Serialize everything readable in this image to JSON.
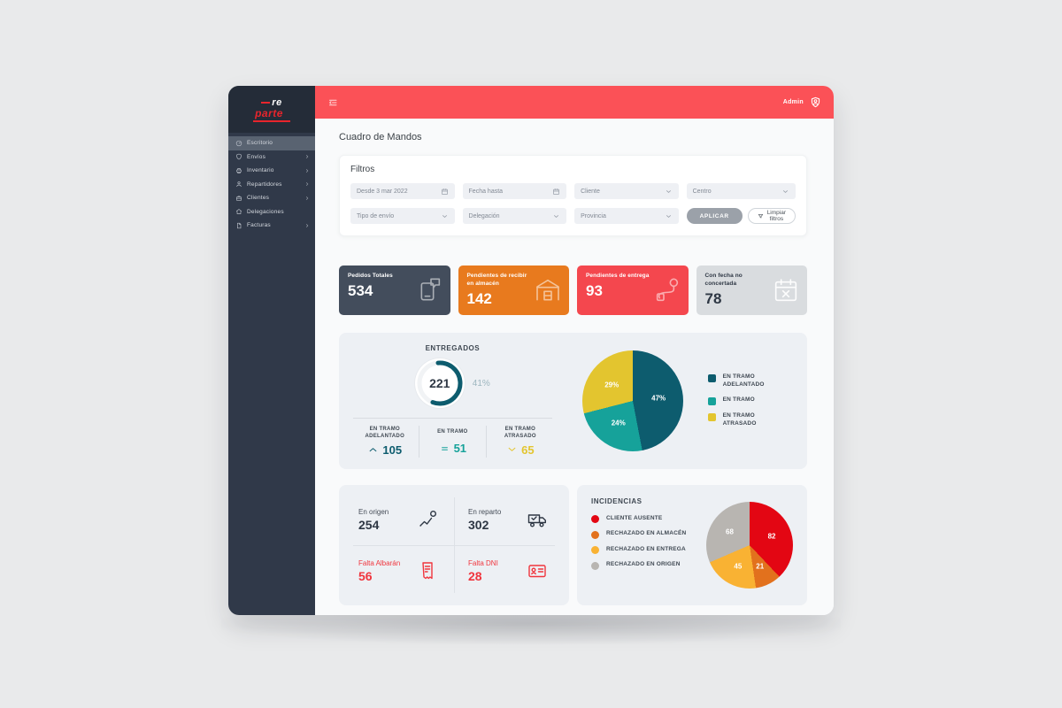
{
  "topbar": {
    "admin_label": "Admin"
  },
  "sidebar": {
    "logo": {
      "line1": "re",
      "line2": "parte"
    },
    "items": [
      {
        "label": "Escritorio",
        "icon": "gauge",
        "active": true,
        "chevron": false
      },
      {
        "label": "Envíos",
        "icon": "shield",
        "active": false,
        "chevron": true
      },
      {
        "label": "Inventario",
        "icon": "printer",
        "active": false,
        "chevron": true
      },
      {
        "label": "Repartidores",
        "icon": "user",
        "active": false,
        "chevron": true
      },
      {
        "label": "Clientes",
        "icon": "briefcase",
        "active": false,
        "chevron": true
      },
      {
        "label": "Delegaciones",
        "icon": "home",
        "active": false,
        "chevron": false
      },
      {
        "label": "Facturas",
        "icon": "file",
        "active": false,
        "chevron": true
      }
    ]
  },
  "page": {
    "title": "Cuadro de Mandos"
  },
  "filters": {
    "title": "Filtros",
    "fields": [
      {
        "label": "Desde 3 mar 2022",
        "icon": "calendar"
      },
      {
        "label": "Fecha hasta",
        "icon": "calendar"
      },
      {
        "label": "Cliente",
        "icon": "chevD"
      },
      {
        "label": "Centro",
        "icon": "chevD"
      },
      {
        "label": "Tipo de envío",
        "icon": "chevD"
      },
      {
        "label": "Delegación",
        "icon": "chevD"
      },
      {
        "label": "Provincia",
        "icon": "chevD"
      }
    ],
    "apply_label": "APLICAR",
    "clear_label": "Limpiar filtros"
  },
  "kpis": [
    {
      "label": "Pedidos Totales",
      "value": "534",
      "bg": "#434d5c",
      "fg": "#ffffff",
      "icon": "order",
      "light": false
    },
    {
      "label": "Pendientes de recibir en almacén",
      "value": "142",
      "bg": "#e87a1e",
      "fg": "#ffffff",
      "icon": "warehouse",
      "light": false
    },
    {
      "label": "Pendientes de entrega",
      "value": "93",
      "bg": "#f4474e",
      "fg": "#ffffff",
      "icon": "routePin",
      "light": false
    },
    {
      "label": "Con fecha no concertada",
      "value": "78",
      "bg": "#d9dcdf",
      "fg": "#2e3744",
      "icon": "calendarX",
      "light": true
    }
  ],
  "entregados": {
    "title": "ENTREGADOS",
    "center_value": "221",
    "percent_label": "41%",
    "stats": [
      {
        "label": "EN TRAMO\nADELANTADO",
        "value": "105",
        "color": "#0d5c6e",
        "icon": "up"
      },
      {
        "label": "EN TRAMO",
        "value": "51",
        "color": "#16a29a",
        "icon": "eq"
      },
      {
        "label": "EN TRAMO\nATRASADO",
        "value": "65",
        "color": "#e3c52f",
        "icon": "down"
      }
    ]
  },
  "estado": {
    "cells": [
      {
        "label": "En origen",
        "value": "254",
        "icon": "route",
        "color": "#2e3744",
        "label_color": "#454c57"
      },
      {
        "label": "En reparto",
        "value": "302",
        "icon": "truck",
        "color": "#2e3744",
        "label_color": "#454c57"
      },
      {
        "label": "Falta Albarán",
        "value": "56",
        "icon": "receipt",
        "color": "#f0353d",
        "label_color": "#f0353d"
      },
      {
        "label": "Falta DNI",
        "value": "28",
        "icon": "idcard",
        "color": "#f0353d",
        "label_color": "#f0353d"
      }
    ]
  },
  "incidencias": {
    "title": "INCIDENCIAS"
  },
  "chart_data": [
    {
      "type": "donut",
      "title": "ENTREGADOS",
      "center_value": 221,
      "percent": 41,
      "color": "#0d5c6e"
    },
    {
      "type": "pie",
      "name": "tramos",
      "legend_position": "right",
      "slices": [
        {
          "label": "EN TRAMO ADELANTADO",
          "percent": 47,
          "color": "#0d5c6e"
        },
        {
          "label": "EN TRAMO",
          "percent": 24,
          "color": "#16a29a"
        },
        {
          "label": "EN TRAMO ATRASADO",
          "percent": 29,
          "color": "#e3c52f"
        }
      ]
    },
    {
      "type": "pie",
      "name": "incidencias",
      "title": "INCIDENCIAS",
      "legend_position": "left",
      "slices": [
        {
          "label": "CLIENTE AUSENTE",
          "value": 82,
          "color": "#e30613"
        },
        {
          "label": "RECHAZADO EN ALMACÉN",
          "value": 21,
          "color": "#e2711d"
        },
        {
          "label": "RECHAZADO EN ENTREGA",
          "value": 45,
          "color": "#f9b233"
        },
        {
          "label": "RECHAZADO EN ORIGEN",
          "value": 68,
          "color": "#b8b5b1"
        }
      ]
    }
  ]
}
